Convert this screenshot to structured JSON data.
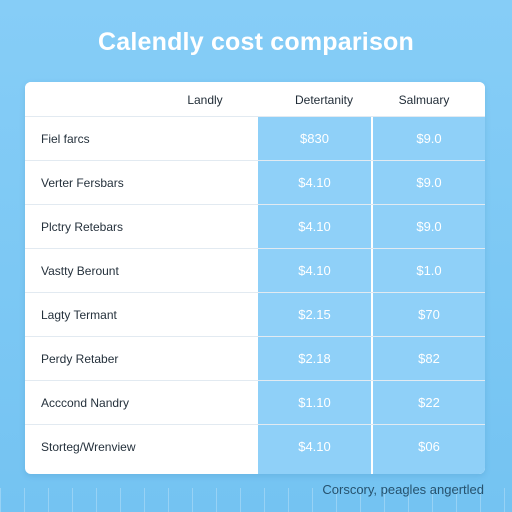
{
  "title": "Calendly cost comparison",
  "columns": [
    "Landly",
    "Detertanity",
    "Salmuary"
  ],
  "rows": [
    {
      "label": "Fiel farcs",
      "col2": "$830",
      "col3": "$9.0"
    },
    {
      "label": "Verter Fersbars",
      "col2": "$4.10",
      "col3": "$9.0"
    },
    {
      "label": "Plctry Retebars",
      "col2": "$4.10",
      "col3": "$9.0"
    },
    {
      "label": "Vastty Berount",
      "col2": "$4.10",
      "col3": "$1.0"
    },
    {
      "label": "Lagty Termant",
      "col2": "$2.15",
      "col3": "$70"
    },
    {
      "label": "Perdy Retaber",
      "col2": "$2.18",
      "col3": "$82"
    },
    {
      "label": "Acccond Nandry",
      "col2": "$1.10",
      "col3": "$22"
    },
    {
      "label": "Storteg/Wrenview",
      "col2": "$4.10",
      "col3": "$06"
    }
  ],
  "footer": "Corscory, peagles angertled",
  "colors": {
    "background": "#86cdf7",
    "highlight_column": "#8fd0f8",
    "card": "#ffffff"
  }
}
